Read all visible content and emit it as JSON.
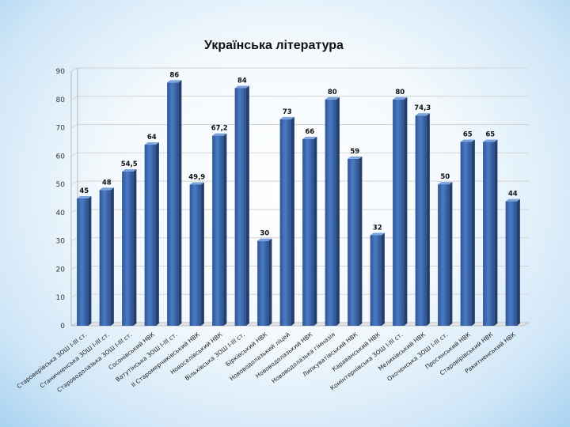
{
  "chart_data": {
    "type": "bar",
    "title": "Українська література",
    "xlabel": "",
    "ylabel": "",
    "ylim": [
      0,
      90
    ],
    "yticks": [
      0,
      10,
      20,
      30,
      40,
      50,
      60,
      70,
      80,
      90
    ],
    "grid": true,
    "categories": [
      "Староверівська ЗОШ І-ІІІ ст.",
      "Станичненська ЗОШ І-ІІІ ст.",
      "Староводолазька ЗОШ І-ІІІ ст.",
      "Сосонівський НВК",
      "Ватутінська ЗОШ І-ІІІ ст.",
      "ІІ Старомерчиківський НВК",
      "Новоселівський НВК",
      "Вільхівська ЗОШ І-ІІІ ст.",
      "Бірківський НВК",
      "Нововодолазький ліцей",
      "Нововодолазький НВК",
      "Нововодолазька гімназія",
      "Липкуватівський НВК",
      "Караванський НВК",
      "Комінтернівська ЗОШ І-ІІІ ст.",
      "Мелихівський НВК",
      "Охоченська ЗОШ І-ІІІ ст.",
      "Просянський НВК",
      "Старовірівський НВК",
      "Ракитненський НВК"
    ],
    "values": [
      45,
      48,
      54.5,
      64,
      86,
      49.9,
      67.2,
      84,
      30,
      73,
      66,
      80,
      59,
      32,
      80,
      74.3,
      50,
      65,
      65,
      44
    ],
    "value_labels": [
      "45",
      "48",
      "54,5",
      "64",
      "86",
      "49,9",
      "67,2",
      "84",
      "30",
      "73",
      "66",
      "80",
      "59",
      "32",
      "80",
      "74,3",
      "50",
      "65",
      "65",
      "44"
    ],
    "bar_color": "#3d6bb3"
  }
}
